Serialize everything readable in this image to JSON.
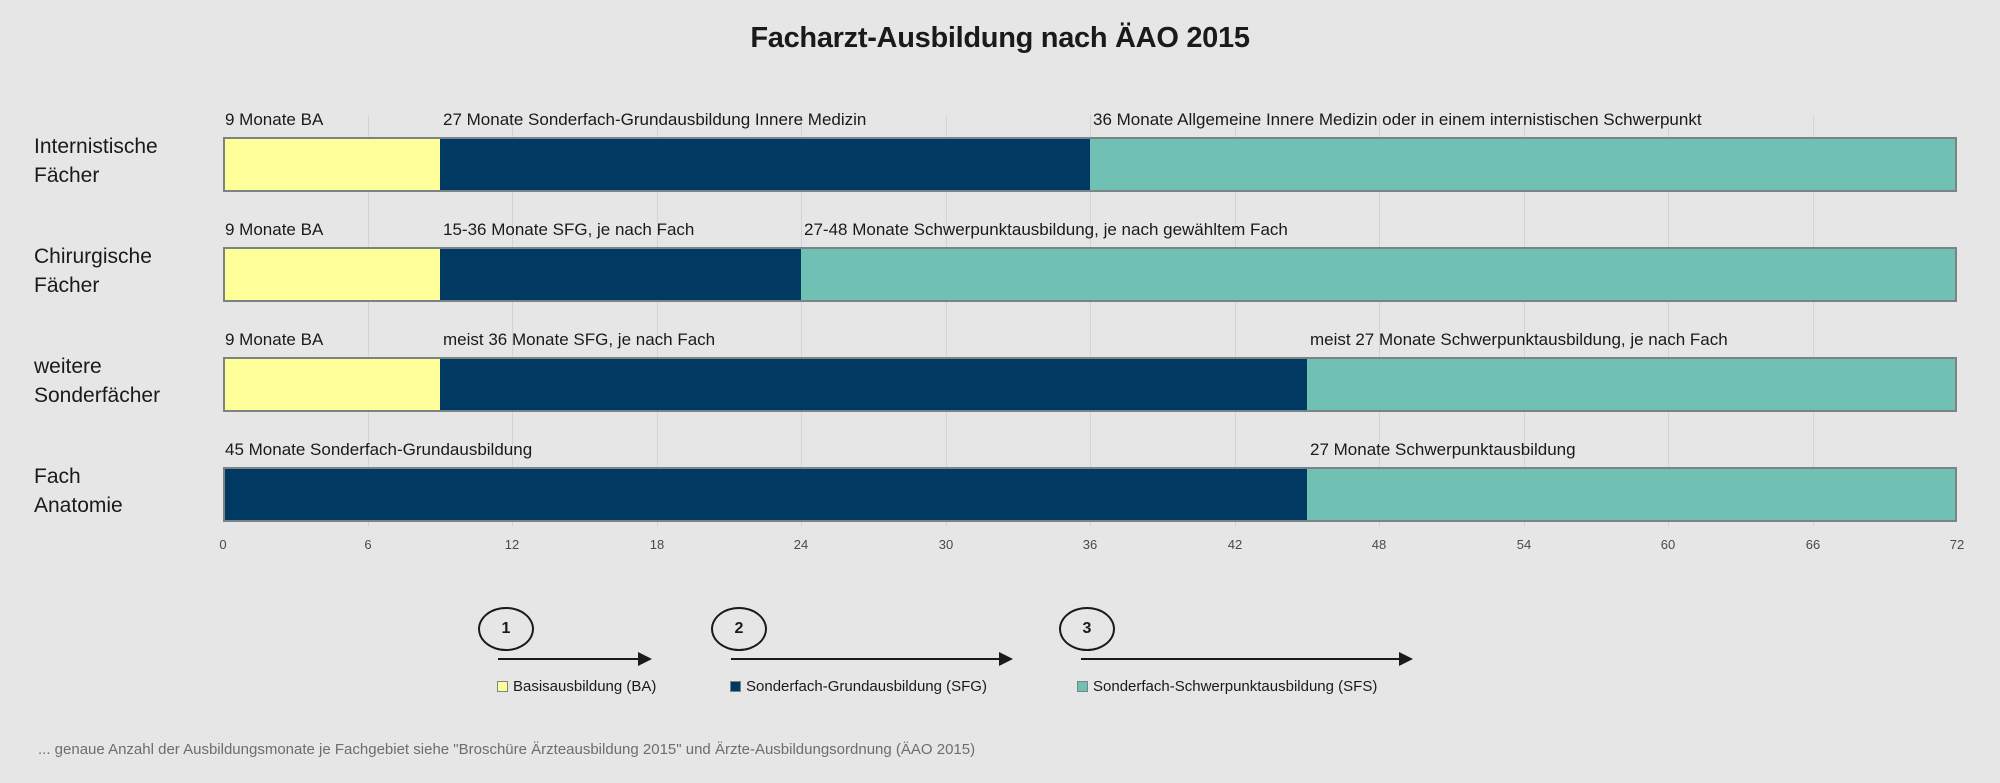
{
  "colors": {
    "BA": "#ffff99",
    "SFG": "#003a63",
    "SFS": "#70c1b3"
  },
  "chart_data": {
    "type": "bar",
    "orientation": "horizontal-stacked",
    "title": "Facharzt-Ausbildung nach ÄAO 2015",
    "xlabel": "",
    "ylabel": "",
    "xlim": [
      0,
      72
    ],
    "xticks": [
      0,
      6,
      12,
      18,
      24,
      30,
      36,
      42,
      48,
      54,
      60,
      66,
      72
    ],
    "grid": true,
    "categories": [
      "Internistische Fächer",
      "Chirurgische Fächer",
      "weitere Sonderfächer",
      "Fach Anatomie"
    ],
    "category_lines": [
      [
        "Internistische",
        "Fächer"
      ],
      [
        "Chirurgische",
        "Fächer"
      ],
      [
        "weitere",
        "Sonderfächer"
      ],
      [
        "Fach",
        "Anatomie"
      ]
    ],
    "series": [
      {
        "name": "Basisausbildung (BA)",
        "key": "BA",
        "values": [
          9,
          9,
          9,
          0
        ]
      },
      {
        "name": "Sonderfach-Grundausbildung (SFG)",
        "key": "SFG",
        "values": [
          27,
          15,
          36,
          45
        ]
      },
      {
        "name": "Sonderfach-Schwerpunktausbildung (SFS)",
        "key": "SFS",
        "values": [
          36,
          48,
          27,
          27
        ]
      }
    ],
    "segment_labels": [
      [
        "9 Monate BA",
        "27 Monate Sonderfach-Grundausbildung Innere Medizin",
        "36 Monate Allgemeine Innere Medizin oder in einem internistischen Schwerpunkt"
      ],
      [
        "9 Monate BA",
        "15-36 Monate SFG, je nach Fach",
        "27-48 Monate Schwerpunktausbildung, je nach gewähltem Fach"
      ],
      [
        "9 Monate BA",
        "meist 36 Monate SFG, je nach Fach",
        "meist 27 Monate Schwerpunktausbildung, je nach Fach"
      ],
      [
        "",
        "45 Monate Sonderfach-Grundausbildung",
        "27 Monate Schwerpunktausbildung"
      ]
    ],
    "legend": {
      "placement": "bottom",
      "entries": [
        "Basisausbildung (BA)",
        "Sonderfach-Grundausbildung (SFG)",
        "Sonderfach-Schwerpunktausbildung (SFS)"
      ]
    },
    "annotations": {
      "phases": [
        {
          "number": "1",
          "legend": "Basisausbildung (BA)"
        },
        {
          "number": "2",
          "legend": "Sonderfach-Grundausbildung (SFG)"
        },
        {
          "number": "3",
          "legend": "Sonderfach-Schwerpunktausbildung (SFS)"
        }
      ]
    }
  },
  "footnote": "... genaue Anzahl der Ausbildungsmonate je Fachgebiet siehe \"Broschüre Ärzteausbildung 2015\" und Ärzte-Ausbildungsordnung (ÄAO 2015)"
}
